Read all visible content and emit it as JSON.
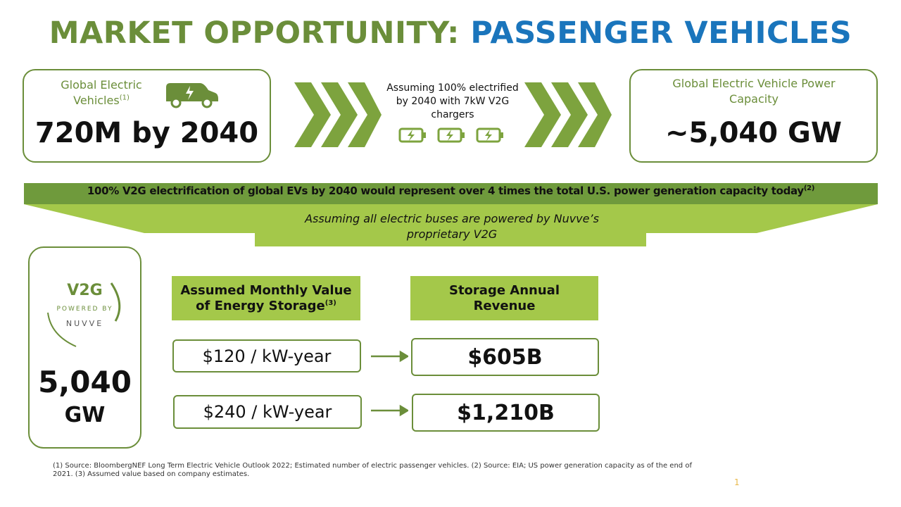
{
  "title": {
    "part1": "MARKET OPPORTUNITY:",
    "part2": "PASSENGER VEHICLES"
  },
  "left_box": {
    "label": "Global Electric Vehicles",
    "note": "(1)",
    "value": "720M by 2040"
  },
  "middle_text": "Assuming 100% electrified by 2040 with 7kW V2G chargers",
  "right_box": {
    "label": "Global Electric Vehicle Power Capacity",
    "value": "~5,040 GW"
  },
  "banner": {
    "text": "100% V2G electrification of global EVs by 2040 would represent over 4 times the total U.S. power generation capacity today",
    "note": "(2)"
  },
  "funnel_text": "Assuming all electric buses are powered by Nuvve’s proprietary V2G",
  "logo": {
    "mark": "V2G",
    "sub": "POWERED BY",
    "brand": "NUVVE"
  },
  "capacity": {
    "value": "5,040",
    "unit": "GW"
  },
  "headers": [
    {
      "text": "Assumed Monthly Value of Energy Storage",
      "note": "(3)"
    },
    {
      "text": "Storage Annual Revenue"
    }
  ],
  "rows": [
    [
      "$120 / kW-year",
      "$605B"
    ],
    [
      "$240 / kW-year",
      "$1,210B"
    ]
  ],
  "footnote": "(1) Source: BloombergNEF Long Term Electric Vehicle Outlook 2022; Estimated number of electric passenger vehicles. (2) Source: EIA; US power generation capacity as of the end of 2021. (3) Assumed value based on company estimates.",
  "page_number": "1"
}
